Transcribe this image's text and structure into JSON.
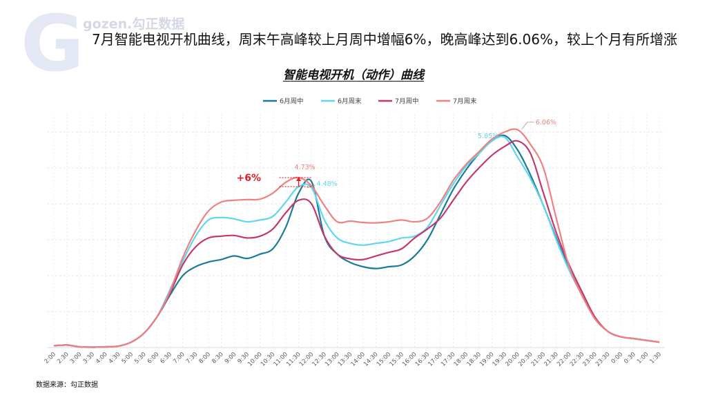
{
  "brand": {
    "logo_letter": "G",
    "name": "gozen.勾正数据"
  },
  "headline": "7月智能电视开机曲线，周末午高峰较上月周中增幅6%，晚高峰达到6.06%，较上个月有所增涨",
  "source": "数据来源：勾正数据",
  "colors": {
    "june_weekday": "#1a7a9a",
    "june_weekend": "#5ed6ef",
    "july_weekday": "#c2386a",
    "july_weekend": "#f08080",
    "increase_marker": "#e51c23"
  },
  "chart_data": {
    "type": "line",
    "title": "智能电视开机（动作）曲线",
    "xlabel": "",
    "ylabel": "",
    "ylim": [
      0,
      6.5
    ],
    "grid": true,
    "legend_position": "top-center",
    "y_tick_labels_visible": false,
    "categories": [
      "2:00",
      "2:30",
      "3:00",
      "3:30",
      "4:00",
      "4:30",
      "5:00",
      "5:30",
      "6:00",
      "6:30",
      "7:00",
      "7:30",
      "8:00",
      "8:30",
      "9:00",
      "9:30",
      "10:00",
      "10:30",
      "11:00",
      "11:30",
      "12:00",
      "12:30",
      "13:00",
      "13:30",
      "14:00",
      "14:30",
      "15:00",
      "15:30",
      "16:00",
      "16:30",
      "17:00",
      "17:30",
      "18:00",
      "18:30",
      "19:00",
      "19:30",
      "20:00",
      "20:30",
      "21:00",
      "21:30",
      "22:00",
      "22:30",
      "23:00",
      "23:30",
      "0:00",
      "0:30",
      "1:00",
      "1:30"
    ],
    "series": [
      {
        "name": "6月周中",
        "color": "#1a7a9a",
        "values": [
          0.05,
          0.07,
          0.02,
          0.01,
          0.02,
          0.04,
          0.15,
          0.4,
          0.85,
          1.45,
          2.0,
          2.25,
          2.38,
          2.45,
          2.55,
          2.48,
          2.6,
          2.75,
          3.35,
          4.3,
          4.62,
          3.1,
          2.6,
          2.37,
          2.25,
          2.2,
          2.25,
          2.3,
          2.55,
          3.0,
          3.7,
          4.4,
          4.95,
          5.4,
          5.75,
          5.9,
          5.5,
          4.8,
          3.95,
          3.05,
          2.2,
          1.45,
          0.8,
          0.45,
          0.3,
          0.25,
          0.2,
          0.15
        ]
      },
      {
        "name": "6月周末",
        "color": "#5ed6ef",
        "values": [
          0.05,
          0.07,
          0.02,
          0.01,
          0.02,
          0.04,
          0.15,
          0.4,
          0.85,
          1.6,
          2.4,
          3.1,
          3.55,
          3.62,
          3.58,
          3.5,
          3.55,
          3.65,
          4.05,
          4.48,
          4.45,
          3.55,
          3.05,
          2.9,
          2.85,
          2.9,
          2.95,
          3.05,
          3.1,
          3.35,
          3.95,
          4.55,
          5.05,
          5.4,
          5.75,
          5.85,
          5.3,
          4.7,
          3.95,
          3.0,
          2.15,
          1.45,
          0.8,
          0.45,
          0.3,
          0.25,
          0.2,
          0.15
        ]
      },
      {
        "name": "7月周中",
        "color": "#c2386a",
        "values": [
          0.05,
          0.07,
          0.02,
          0.01,
          0.02,
          0.04,
          0.15,
          0.4,
          0.85,
          1.5,
          2.3,
          2.8,
          3.05,
          3.1,
          3.12,
          3.05,
          3.1,
          3.3,
          3.75,
          4.1,
          4.0,
          3.1,
          2.6,
          2.47,
          2.45,
          2.55,
          2.65,
          2.75,
          3.05,
          3.3,
          3.6,
          4.1,
          4.6,
          5.0,
          5.35,
          5.6,
          5.75,
          5.4,
          4.3,
          3.2,
          2.3,
          1.55,
          0.85,
          0.45,
          0.3,
          0.25,
          0.2,
          0.15
        ]
      },
      {
        "name": "7月周末",
        "color": "#f08080",
        "values": [
          0.05,
          0.07,
          0.02,
          0.01,
          0.02,
          0.04,
          0.15,
          0.4,
          0.85,
          1.55,
          2.5,
          3.25,
          3.8,
          4.05,
          4.1,
          4.12,
          4.13,
          4.3,
          4.6,
          4.73,
          4.5,
          3.95,
          3.5,
          3.52,
          3.48,
          3.47,
          3.5,
          3.55,
          3.5,
          3.6,
          4.05,
          4.65,
          5.1,
          5.45,
          5.8,
          6.0,
          6.06,
          5.65,
          5.0,
          3.6,
          2.25,
          1.45,
          0.8,
          0.45,
          0.3,
          0.25,
          0.2,
          0.15
        ]
      }
    ],
    "annotations": [
      {
        "text": "4.73%",
        "series": "7月周末",
        "category": "11:30",
        "value": 4.73
      },
      {
        "text": "4.48%",
        "series": "6月周末",
        "category": "11:30",
        "value": 4.48
      },
      {
        "text": "5.85%",
        "series": "6月周末",
        "category": "19:30",
        "value": 5.85
      },
      {
        "text": "6.06%",
        "series": "7月周末",
        "category": "20:00",
        "value": 6.06
      },
      {
        "text": "+6%",
        "type": "increase-marker",
        "from_value": 4.48,
        "to_value": 4.73,
        "category": "11:30"
      }
    ]
  }
}
